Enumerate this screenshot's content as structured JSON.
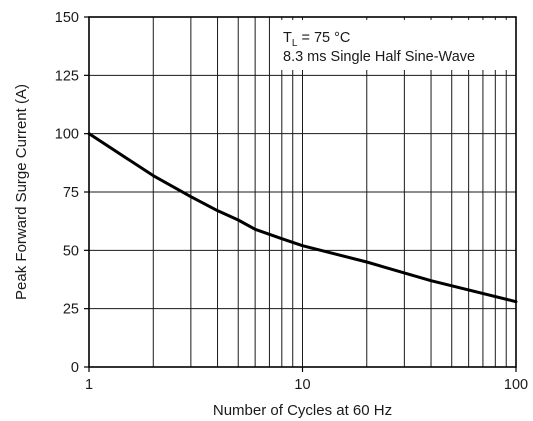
{
  "chart_data": {
    "type": "line",
    "title": "",
    "xlabel": "Number of Cycles at 60 Hz",
    "ylabel": "Peak Forward Surge Current (A)",
    "x_scale": "log",
    "xlim": [
      1,
      100
    ],
    "ylim": [
      0,
      150
    ],
    "x_ticks": [
      1,
      10,
      100
    ],
    "x_tick_labels": [
      "1",
      "10",
      "100"
    ],
    "x_minor_gridlines": [
      2,
      3,
      4,
      5,
      6,
      7,
      8,
      9,
      20,
      30,
      40,
      50,
      60,
      70,
      80,
      90
    ],
    "y_ticks": [
      0,
      25,
      50,
      75,
      100,
      125,
      150
    ],
    "y_tick_labels": [
      "0",
      "25",
      "50",
      "75",
      "100",
      "125",
      "150"
    ],
    "grid": true,
    "annotation": {
      "line1_main": "T",
      "line1_sub": "L",
      "line1_rest": " = 75 °C",
      "line2": "8.3 ms Single Half Sine-Wave"
    },
    "series": [
      {
        "x": [
          1,
          2,
          3,
          4,
          5,
          6,
          8,
          10,
          20,
          40,
          100
        ],
        "y": [
          100,
          82,
          73,
          67,
          63,
          59,
          55,
          52,
          45,
          37,
          28
        ]
      }
    ],
    "colors": {
      "line": "#000000",
      "grid": "#1a1a1a",
      "frame": "#000000"
    }
  }
}
